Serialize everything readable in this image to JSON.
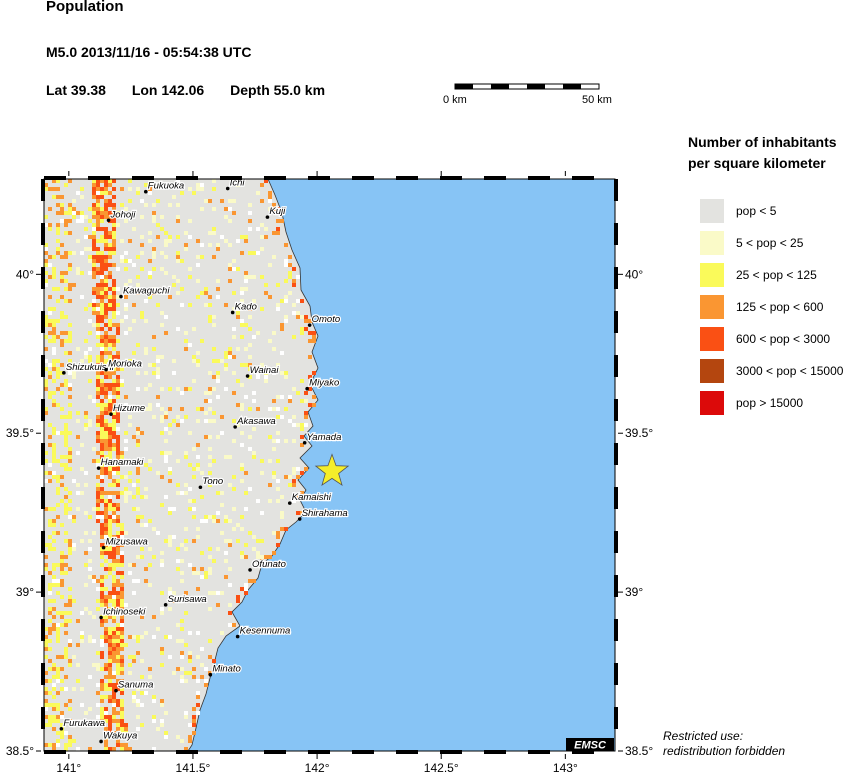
{
  "header": {
    "title": "Population",
    "event": "M5.0  2013/11/16 - 05:54:38 UTC",
    "lat": "Lat 39.38",
    "lon": "Lon 142.06",
    "depth": "Depth  55.0 km"
  },
  "scale": {
    "left_label": "0 km",
    "right_label": "50 km"
  },
  "map": {
    "lon_range": [
      140.9,
      143.2
    ],
    "lat_range": [
      38.5,
      40.3
    ],
    "lon_ticks": [
      {
        "value": 141.0,
        "label": "141°"
      },
      {
        "value": 141.5,
        "label": "141.5°"
      },
      {
        "value": 142.0,
        "label": "142°"
      },
      {
        "value": 142.5,
        "label": "142.5°"
      },
      {
        "value": 143.0,
        "label": "143°"
      }
    ],
    "lat_ticks": [
      {
        "value": 40.0,
        "label": "40°"
      },
      {
        "value": 39.5,
        "label": "39.5°"
      },
      {
        "value": 39.0,
        "label": "39°"
      },
      {
        "value": 38.5,
        "label": "38.5°"
      }
    ],
    "sea_color": "#87c4f5",
    "land_color": "#e3e3e0",
    "epicenter": {
      "lon": 142.06,
      "lat": 39.38,
      "color": "#f5ee2a"
    },
    "cities": [
      {
        "name": "Fukuoka",
        "lon": 141.31,
        "lat": 40.26
      },
      {
        "name": "Ichi",
        "lon": 141.64,
        "lat": 40.27
      },
      {
        "name": "Johoji",
        "lon": 141.16,
        "lat": 40.17
      },
      {
        "name": "Kuji",
        "lon": 141.8,
        "lat": 40.18
      },
      {
        "name": "Kawaguchi",
        "lon": 141.21,
        "lat": 39.93
      },
      {
        "name": "Kado",
        "lon": 141.66,
        "lat": 39.88
      },
      {
        "name": "Omoto",
        "lon": 141.97,
        "lat": 39.84
      },
      {
        "name": "Shizukuishi",
        "lon": 140.98,
        "lat": 39.69
      },
      {
        "name": "Morioka",
        "lon": 141.15,
        "lat": 39.7
      },
      {
        "name": "Wainai",
        "lon": 141.72,
        "lat": 39.68
      },
      {
        "name": "Miyako",
        "lon": 141.96,
        "lat": 39.64
      },
      {
        "name": "Hizume",
        "lon": 141.17,
        "lat": 39.56
      },
      {
        "name": "Akasawa",
        "lon": 141.67,
        "lat": 39.52
      },
      {
        "name": "Yamada",
        "lon": 141.95,
        "lat": 39.47
      },
      {
        "name": "Hanamaki",
        "lon": 141.12,
        "lat": 39.39
      },
      {
        "name": "Tono",
        "lon": 141.53,
        "lat": 39.33
      },
      {
        "name": "Kamaishi",
        "lon": 141.89,
        "lat": 39.28
      },
      {
        "name": "Shirahama",
        "lon": 141.93,
        "lat": 39.23
      },
      {
        "name": "Mizusawa",
        "lon": 141.14,
        "lat": 39.14
      },
      {
        "name": "Ofunato",
        "lon": 141.73,
        "lat": 39.07
      },
      {
        "name": "Surisawa",
        "lon": 141.39,
        "lat": 38.96
      },
      {
        "name": "Ichinoseki",
        "lon": 141.13,
        "lat": 38.92
      },
      {
        "name": "Kesennuma",
        "lon": 141.68,
        "lat": 38.86
      },
      {
        "name": "Minato",
        "lon": 141.57,
        "lat": 38.74
      },
      {
        "name": "Sanuma",
        "lon": 141.19,
        "lat": 38.69
      },
      {
        "name": "Furukawa",
        "lon": 140.97,
        "lat": 38.57
      },
      {
        "name": "Wakuya",
        "lon": 141.13,
        "lat": 38.53
      }
    ],
    "logo": "EMSC"
  },
  "legend": {
    "title_line1": "Number of inhabitants",
    "title_line2": "per square kilometer",
    "items": [
      {
        "label": "pop < 5",
        "color": "#e3e3e0"
      },
      {
        "label": "5 < pop < 25",
        "color": "#fafac8"
      },
      {
        "label": "25 < pop < 125",
        "color": "#fafa5a"
      },
      {
        "label": "125 < pop < 600",
        "color": "#fa9632"
      },
      {
        "label": "600 < pop < 3000",
        "color": "#fa5014"
      },
      {
        "label": "3000 < pop < 15000",
        "color": "#b4460f"
      },
      {
        "label": "pop > 15000",
        "color": "#dc0a0a"
      }
    ]
  },
  "notice": {
    "line1": "Restricted use:",
    "line2": "redistribution forbidden"
  }
}
